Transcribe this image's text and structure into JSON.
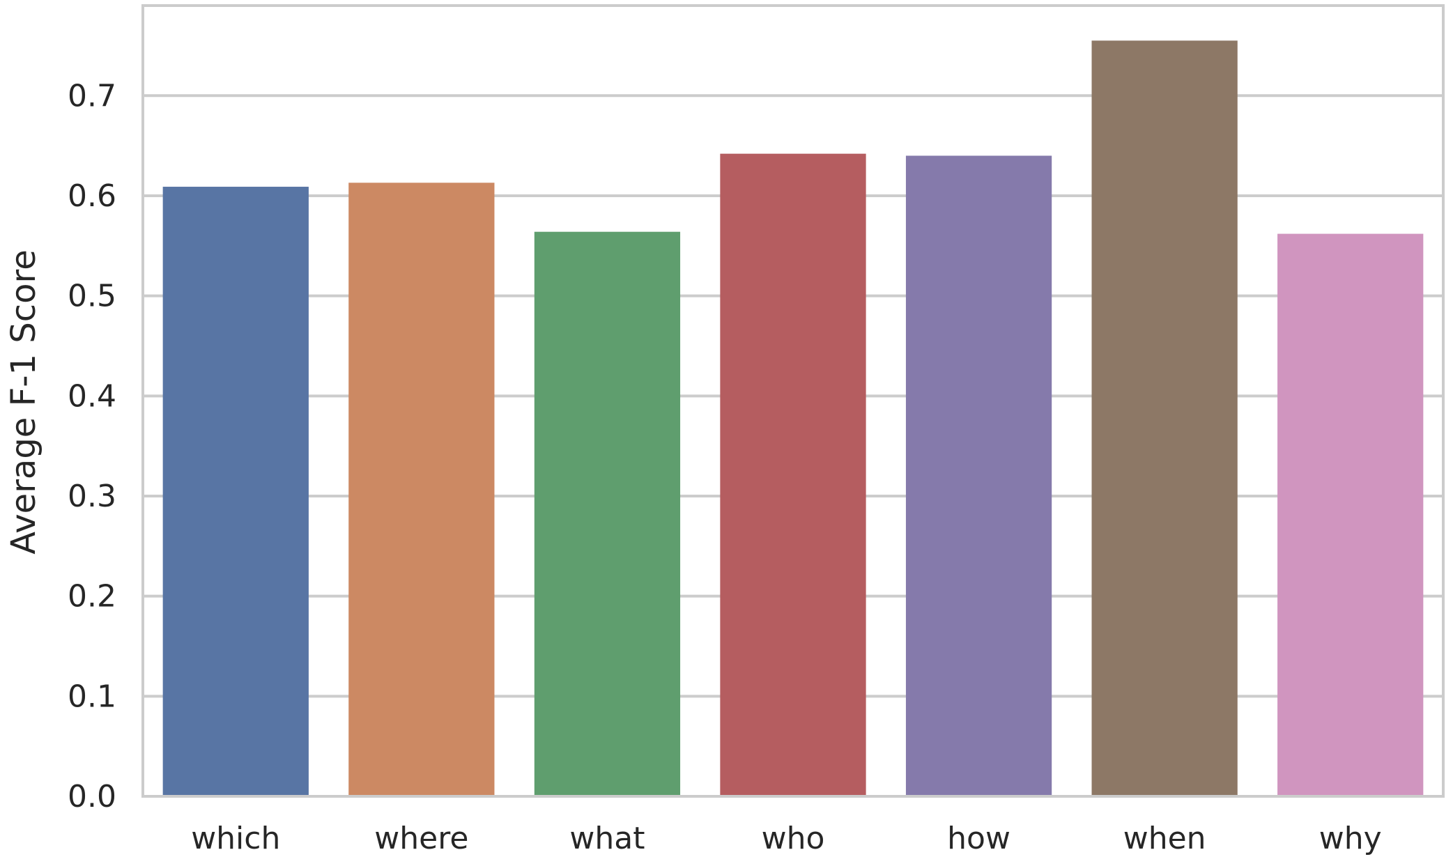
{
  "chart_data": {
    "type": "bar",
    "title": "",
    "xlabel": "",
    "ylabel": "Average F-1 Score",
    "categories": [
      "which",
      "where",
      "what",
      "who",
      "how",
      "when",
      "why"
    ],
    "values": [
      0.609,
      0.613,
      0.564,
      0.642,
      0.64,
      0.755,
      0.562
    ],
    "colors": [
      "#5875a4",
      "#cc8963",
      "#5f9e6e",
      "#b55d60",
      "#857aab",
      "#8d7866",
      "#d095bf"
    ],
    "ylim": [
      0,
      0.79
    ],
    "yticks": [
      0.0,
      0.1,
      0.2,
      0.3,
      0.4,
      0.5,
      0.6,
      0.7
    ],
    "ytick_labels": [
      "0.0",
      "0.1",
      "0.2",
      "0.3",
      "0.4",
      "0.5",
      "0.6",
      "0.7"
    ],
    "grid": "horizontal",
    "legend": "none",
    "style": {
      "grid_color": "#cccccc",
      "frame_color": "#cccccc",
      "text_color": "#262626",
      "background": "#ffffff"
    }
  }
}
